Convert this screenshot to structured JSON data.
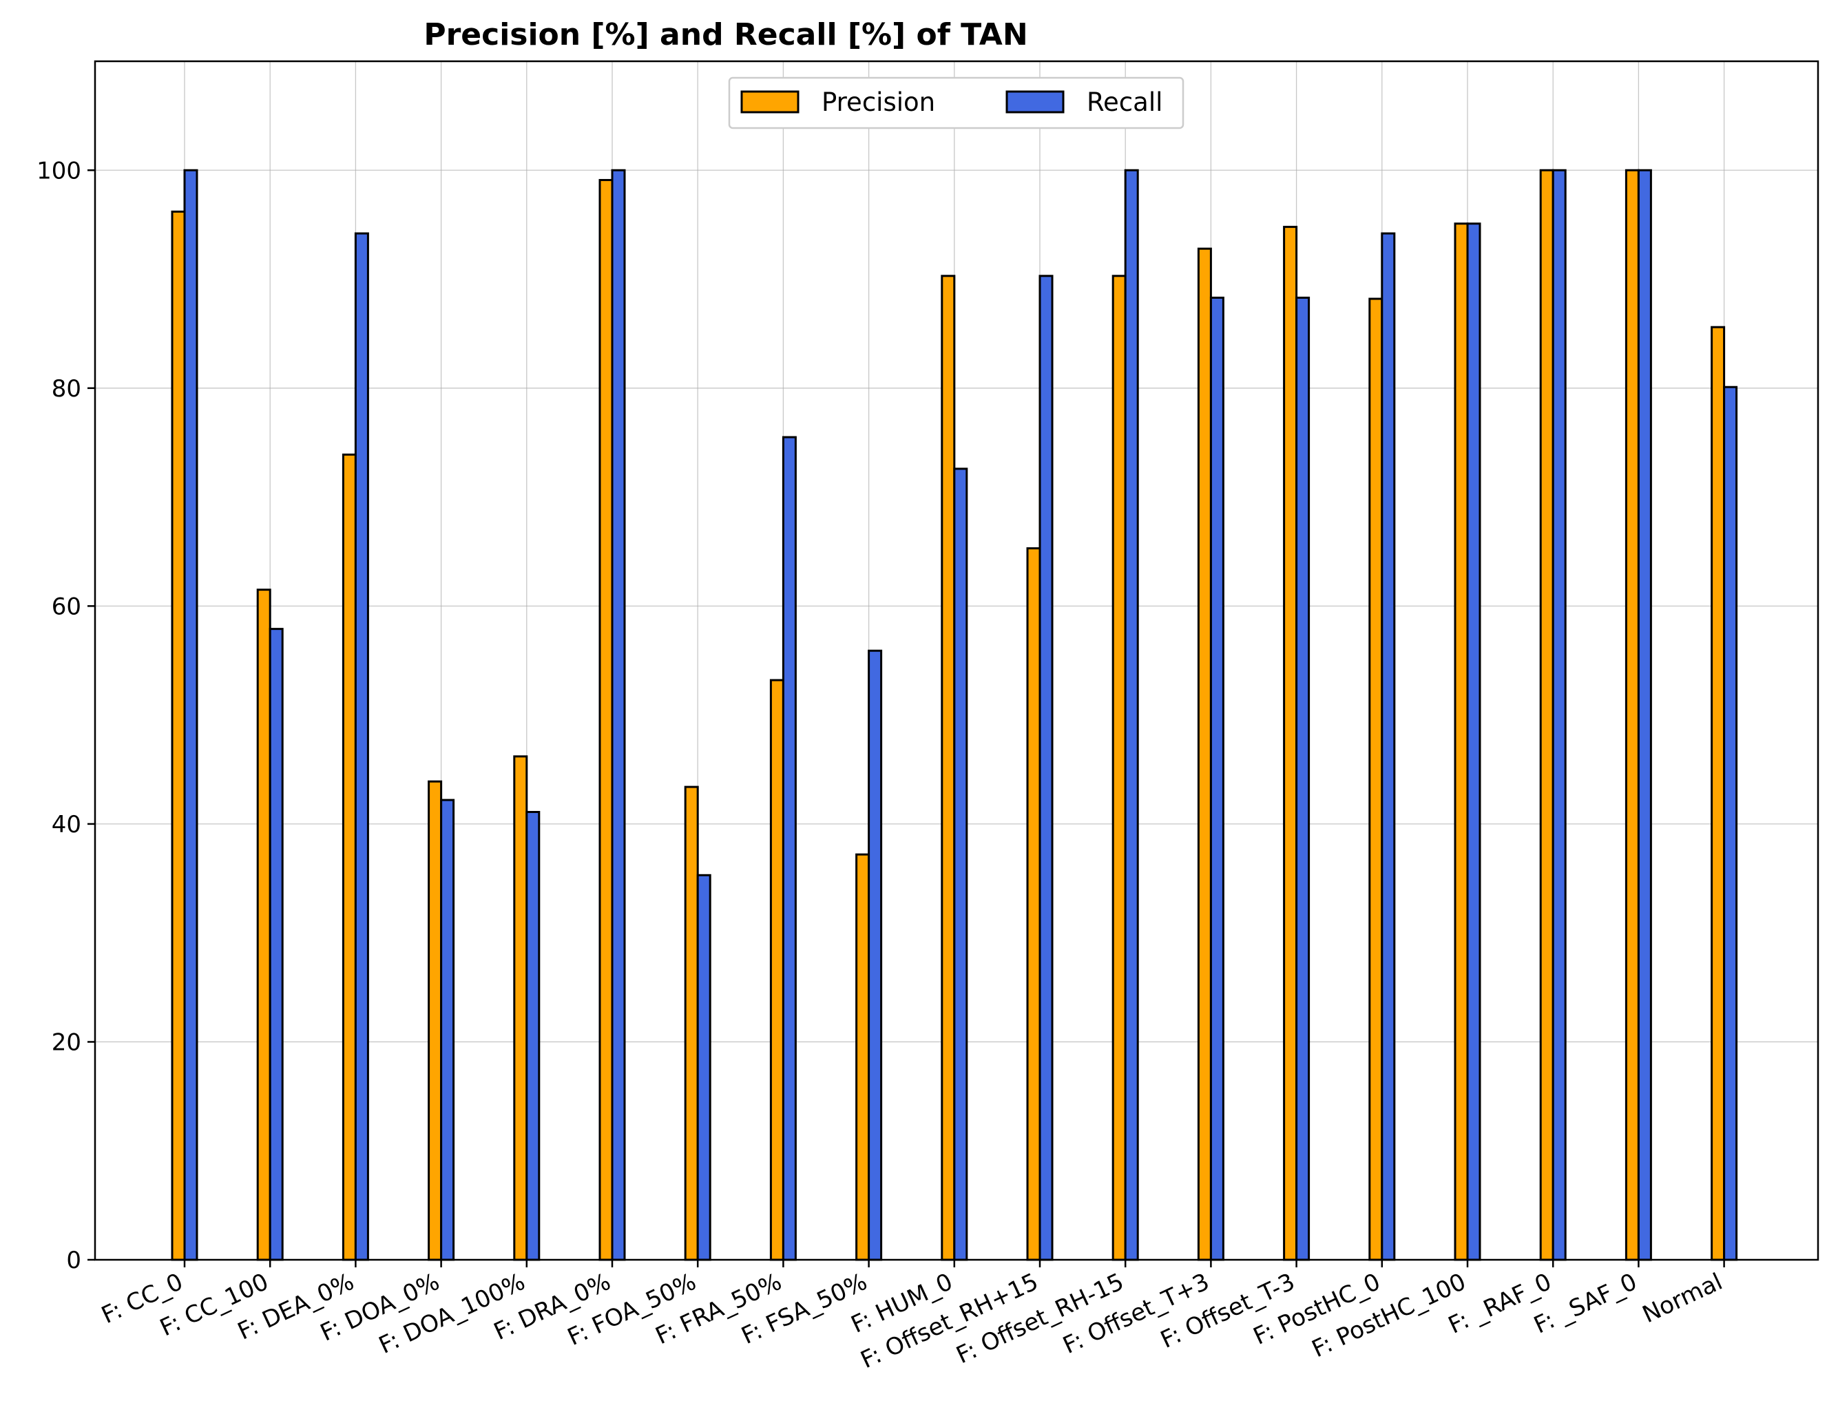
{
  "chart_data": {
    "type": "bar",
    "title": "Precision [%] and Recall [%] of TAN",
    "xlabel": "",
    "ylabel": "",
    "ylim": [
      0,
      110
    ],
    "yticks": [
      0,
      20,
      40,
      60,
      80,
      100
    ],
    "grid": true,
    "legend_position": "top-center",
    "categories": [
      "F: CC_0",
      "F: CC_100",
      "F: DEA_0%",
      "F: DOA_0%",
      "F: DOA_100%",
      "F: DRA_0%",
      "F: FOA_50%",
      "F: FRA_50%",
      "F: FSA_50%",
      "F: HUM_0",
      "F: Offset_RH+15",
      "F: Offset_RH-15",
      "F: Offset_T+3",
      "F: Offset_T-3",
      "F: PostHC_0",
      "F: PostHC_100",
      "F: _RAF_0",
      "F: _SAF_0",
      "Normal"
    ],
    "series": [
      {
        "name": "Precision",
        "color": "#ffa500",
        "values": [
          96.2,
          61.5,
          73.9,
          43.9,
          46.2,
          99.1,
          43.4,
          53.2,
          37.2,
          90.3,
          65.3,
          90.3,
          92.8,
          94.8,
          88.2,
          95.1,
          100,
          100,
          85.6
        ]
      },
      {
        "name": "Recall",
        "color": "#4169e1",
        "values": [
          100,
          57.9,
          94.2,
          42.2,
          41.1,
          100,
          35.3,
          75.5,
          55.9,
          72.6,
          90.3,
          100,
          88.3,
          88.3,
          94.2,
          95.1,
          100,
          100,
          80.1
        ]
      }
    ]
  }
}
